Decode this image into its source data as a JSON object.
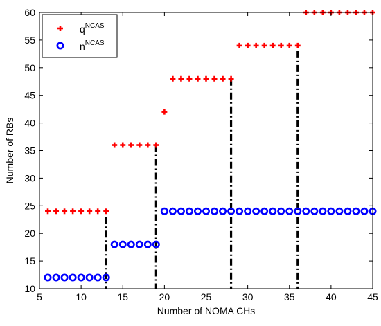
{
  "chart_data": {
    "type": "scatter",
    "xlabel": "Number of NOMA CHs",
    "ylabel": "Number of RBs",
    "xlim": [
      5,
      45
    ],
    "ylim": [
      10,
      60
    ],
    "xticks": [
      5,
      10,
      15,
      20,
      25,
      30,
      35,
      40,
      45
    ],
    "yticks": [
      10,
      15,
      20,
      25,
      30,
      35,
      40,
      45,
      50,
      55,
      60
    ],
    "grid": false,
    "legend_position": "top-left",
    "series": [
      {
        "legend_main": "q",
        "legend_sup": "NCAS",
        "marker": "plus",
        "color": "#ff0000",
        "x": [
          6,
          7,
          8,
          9,
          10,
          11,
          12,
          13,
          14,
          15,
          16,
          17,
          18,
          19,
          20,
          21,
          22,
          23,
          24,
          25,
          26,
          27,
          28,
          29,
          30,
          31,
          32,
          33,
          34,
          35,
          36,
          37,
          38,
          39,
          40,
          41,
          42,
          43,
          44,
          45
        ],
        "y": [
          24,
          24,
          24,
          24,
          24,
          24,
          24,
          24,
          36,
          36,
          36,
          36,
          36,
          36,
          42,
          48,
          48,
          48,
          48,
          48,
          48,
          48,
          48,
          54,
          54,
          54,
          54,
          54,
          54,
          54,
          54,
          60,
          60,
          60,
          60,
          60,
          60,
          60,
          60,
          60
        ]
      },
      {
        "legend_main": "n",
        "legend_sup": "NCAS",
        "marker": "circle",
        "color": "#0000ff",
        "x": [
          6,
          7,
          8,
          9,
          10,
          11,
          12,
          13,
          14,
          15,
          16,
          17,
          18,
          19,
          20,
          21,
          22,
          23,
          24,
          25,
          26,
          27,
          28,
          29,
          30,
          31,
          32,
          33,
          34,
          35,
          36,
          37,
          38,
          39,
          40,
          41,
          42,
          43,
          44,
          45
        ],
        "y": [
          12,
          12,
          12,
          12,
          12,
          12,
          12,
          12,
          18,
          18,
          18,
          18,
          18,
          18,
          24,
          24,
          24,
          24,
          24,
          24,
          24,
          24,
          24,
          24,
          24,
          24,
          24,
          24,
          24,
          24,
          24,
          24,
          24,
          24,
          24,
          24,
          24,
          24,
          24,
          24
        ]
      }
    ],
    "boundaries": [
      {
        "x": 13,
        "y_top": 23
      },
      {
        "x": 19,
        "y_top": 36
      },
      {
        "x": 28,
        "y_top": 48
      },
      {
        "x": 36,
        "y_top": 53
      }
    ]
  }
}
